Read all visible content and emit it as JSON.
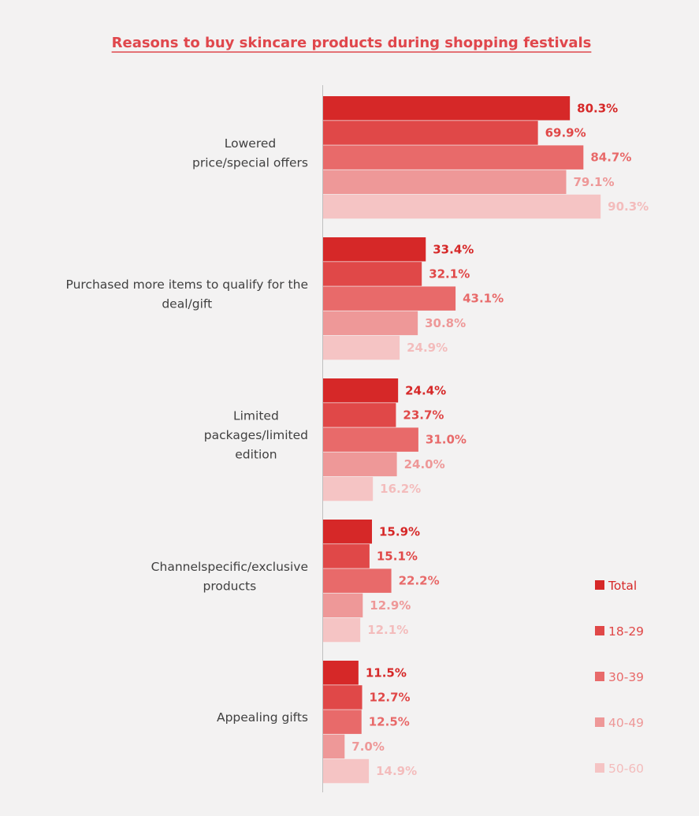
{
  "chart_data": {
    "type": "bar",
    "orientation": "horizontal",
    "title": "Reasons to buy skincare products during shopping festivals",
    "categories": [
      [
        "Lowered",
        "price/special offers"
      ],
      [
        "Purchased more items to qualify for the",
        "deal/gift"
      ],
      [
        "Limited",
        "packages/limited",
        "edition"
      ],
      [
        "Channelspecific/exclusive",
        "products"
      ],
      [
        "Appealing gifts"
      ]
    ],
    "series": [
      {
        "name": "Total",
        "color": "#d62828",
        "values": [
          80.3,
          33.4,
          24.4,
          15.9,
          11.5
        ]
      },
      {
        "name": "18-29",
        "color": "#e04848",
        "values": [
          69.9,
          32.1,
          23.7,
          15.1,
          12.7
        ]
      },
      {
        "name": "30-39",
        "color": "#e86a6a",
        "values": [
          84.7,
          43.1,
          31.0,
          22.2,
          12.5
        ]
      },
      {
        "name": "40-49",
        "color": "#ee9898",
        "values": [
          79.1,
          30.8,
          24.0,
          12.9,
          7.0
        ]
      },
      {
        "name": "50-60",
        "color": "#f5c4c4",
        "values": [
          90.3,
          24.9,
          16.2,
          12.1,
          14.9
        ]
      }
    ],
    "value_suffix": "%",
    "xlim": [
      0,
      100
    ],
    "grid": false,
    "legend_position": "right-bottom"
  }
}
